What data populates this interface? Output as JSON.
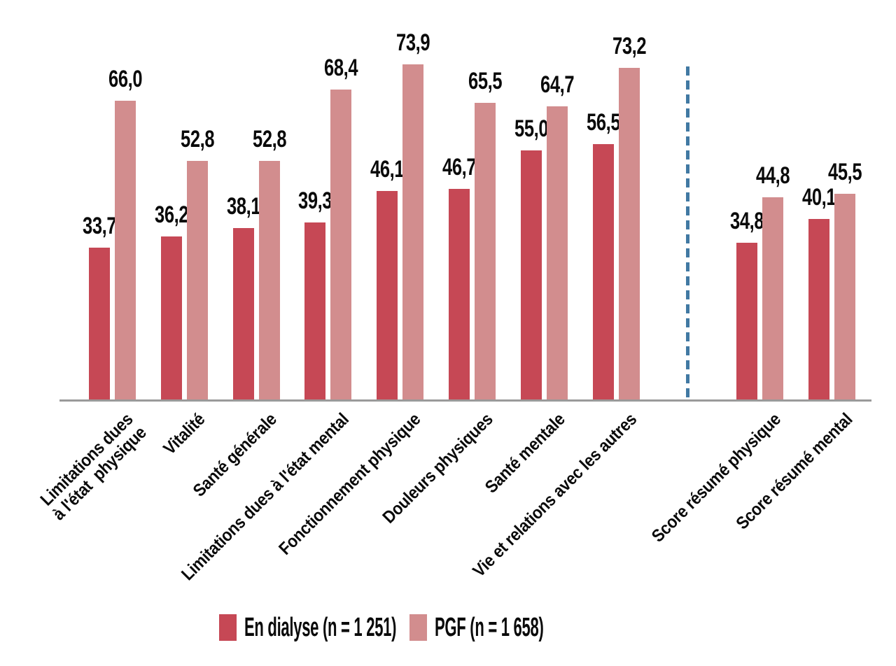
{
  "chart_data": {
    "type": "bar",
    "title": "",
    "xlabel": "",
    "ylabel": "",
    "categories": [
      "Limitations dues\nà l'état  physique",
      "Vitalité",
      "Santé générale",
      "Limitations dues à l'état mental",
      "Fonctionnement physique",
      "Douleurs physiques",
      "Santé mentale",
      "Vie et relations avec les autres",
      "Score résumé physique",
      "Score résumé mental"
    ],
    "series": [
      {
        "name": "En dialyse (n = 1 251)",
        "color": "#c64855",
        "values": [
          33.7,
          36.2,
          38.1,
          39.3,
          46.1,
          46.7,
          55.0,
          56.5,
          34.8,
          40.1
        ]
      },
      {
        "name": "PGF (n = 1 658)",
        "color": "#d28d8e",
        "values": [
          66.0,
          52.8,
          52.8,
          68.4,
          73.9,
          65.5,
          64.7,
          73.2,
          44.8,
          45.5
        ]
      }
    ],
    "decimal_separator": ",",
    "ylim": [
      0,
      85
    ],
    "grid": false,
    "value_labels_shown": true,
    "legend_position": "bottom",
    "separator": {
      "after_category_index": 7,
      "style": "dashed",
      "color": "#4179a3"
    },
    "axis_line_color": "#9a9a9a",
    "value_label_color": "#0a0a0a"
  }
}
